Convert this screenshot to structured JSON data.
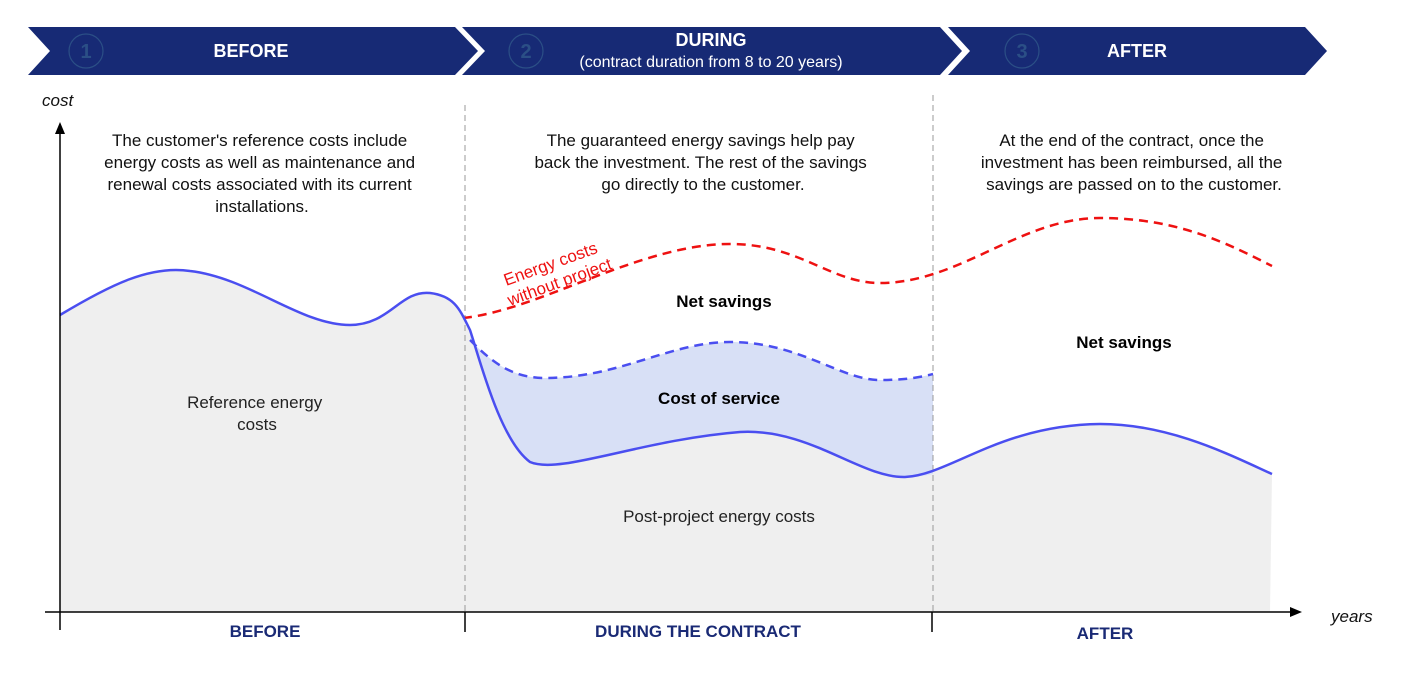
{
  "colors": {
    "header": "#172a75",
    "solid_curve": "#4a4ef0",
    "red_curve": "#ee1111",
    "cost_of_service_fill": "#d8e0f6",
    "ref_fill": "#efefef"
  },
  "header": [
    {
      "number": "1",
      "title": "BEFORE",
      "subtitle": ""
    },
    {
      "number": "2",
      "title": "DURING",
      "subtitle": "(contract duration from 8 to 20 years)"
    },
    {
      "number": "3",
      "title": "AFTER",
      "subtitle": ""
    }
  ],
  "axes": {
    "y_label": "cost",
    "x_label": "years"
  },
  "descriptions": [
    [
      "The customer's reference costs include",
      "energy costs as well as maintenance and",
      "renewal costs associated with its current",
      "installations."
    ],
    [
      "The guaranteed energy savings help pay",
      "back the investment. The rest of the savings",
      "go directly to the customer."
    ],
    [
      "At the end of the contract, once the",
      "investment has been reimbursed, all the",
      "savings are passed on to the customer."
    ]
  ],
  "labels": {
    "reference": [
      "Reference energy",
      "costs"
    ],
    "without_project": [
      "Energy costs",
      "without project"
    ],
    "net_savings_during": "Net savings",
    "cost_of_service": "Cost of service",
    "post_project": "Post-project energy costs",
    "net_savings_after": "Net savings"
  },
  "phases": [
    "BEFORE",
    "DURING THE CONTRACT",
    "AFTER"
  ]
}
